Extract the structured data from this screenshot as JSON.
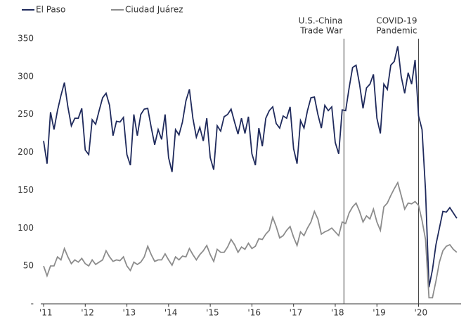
{
  "chart_data": {
    "type": "line",
    "categories": [
      "'11",
      null,
      null,
      null,
      null,
      null,
      null,
      null,
      null,
      null,
      null,
      null,
      "'12",
      null,
      null,
      null,
      null,
      null,
      null,
      null,
      null,
      null,
      null,
      null,
      "'13",
      null,
      null,
      null,
      null,
      null,
      null,
      null,
      null,
      null,
      null,
      null,
      "'14",
      null,
      null,
      null,
      null,
      null,
      null,
      null,
      null,
      null,
      null,
      null,
      "'15",
      null,
      null,
      null,
      null,
      null,
      null,
      null,
      null,
      null,
      null,
      null,
      "'16",
      null,
      null,
      null,
      null,
      null,
      null,
      null,
      null,
      null,
      null,
      null,
      "'17",
      null,
      null,
      null,
      null,
      null,
      null,
      null,
      null,
      null,
      null,
      null,
      "'18",
      null,
      null,
      null,
      null,
      null,
      null,
      null,
      null,
      null,
      null,
      null,
      "'19",
      null,
      null,
      null,
      null,
      null,
      null,
      null,
      null,
      null,
      null,
      null,
      "'20",
      null,
      null,
      null,
      null,
      null,
      null,
      null,
      null,
      null,
      null,
      null
    ],
    "series": [
      {
        "name": "El Paso",
        "color": "#1f2a5c",
        "values": [
          215,
          185,
          253,
          230,
          255,
          275,
          292,
          260,
          235,
          245,
          245,
          258,
          203,
          197,
          243,
          237,
          255,
          272,
          278,
          262,
          222,
          241,
          240,
          246,
          197,
          183,
          250,
          222,
          250,
          257,
          258,
          233,
          210,
          230,
          217,
          250,
          193,
          174,
          230,
          223,
          240,
          268,
          283,
          245,
          220,
          233,
          215,
          245,
          193,
          177,
          235,
          228,
          247,
          250,
          257,
          240,
          224,
          245,
          225,
          247,
          198,
          183,
          232,
          208,
          245,
          255,
          260,
          238,
          232,
          248,
          245,
          260,
          205,
          185,
          242,
          232,
          255,
          272,
          273,
          250,
          232,
          262,
          255,
          260,
          213,
          198,
          256,
          255,
          285,
          312,
          315,
          290,
          258,
          285,
          290,
          303,
          245,
          225,
          290,
          283,
          315,
          320,
          340,
          300,
          278,
          305,
          290,
          322,
          248,
          230,
          150,
          22,
          45,
          78,
          100,
          122,
          121,
          127,
          120,
          113
        ]
      },
      {
        "name": "Ciudad Juárez",
        "color": "#8c8c8c",
        "values": [
          50,
          37,
          50,
          50,
          62,
          58,
          73,
          62,
          53,
          58,
          55,
          60,
          53,
          50,
          58,
          52,
          55,
          58,
          70,
          62,
          56,
          58,
          57,
          62,
          50,
          44,
          55,
          52,
          55,
          62,
          76,
          65,
          56,
          58,
          58,
          66,
          58,
          51,
          62,
          58,
          63,
          62,
          73,
          65,
          58,
          65,
          70,
          77,
          65,
          56,
          72,
          68,
          68,
          75,
          85,
          78,
          68,
          75,
          72,
          80,
          73,
          76,
          86,
          85,
          92,
          97,
          114,
          102,
          87,
          90,
          97,
          102,
          88,
          77,
          95,
          90,
          100,
          108,
          122,
          112,
          92,
          95,
          97,
          100,
          95,
          90,
          108,
          106,
          120,
          128,
          133,
          122,
          108,
          116,
          112,
          125,
          108,
          97,
          128,
          133,
          143,
          152,
          160,
          143,
          125,
          133,
          132,
          135,
          130,
          110,
          85,
          8,
          8,
          30,
          55,
          70,
          76,
          78,
          72,
          68
        ]
      }
    ],
    "ylim": [
      0,
      350
    ],
    "yticks": [
      {
        "value": 0,
        "label": "-"
      },
      50,
      100,
      150,
      200,
      250,
      300,
      350
    ],
    "grid": false,
    "legend": "top-left",
    "annotations": [
      {
        "lines": [
          "U.S.-China",
          "Trade War"
        ]
      },
      {
        "lines": [
          "COVID-19",
          "Pandemic"
        ]
      }
    ]
  }
}
